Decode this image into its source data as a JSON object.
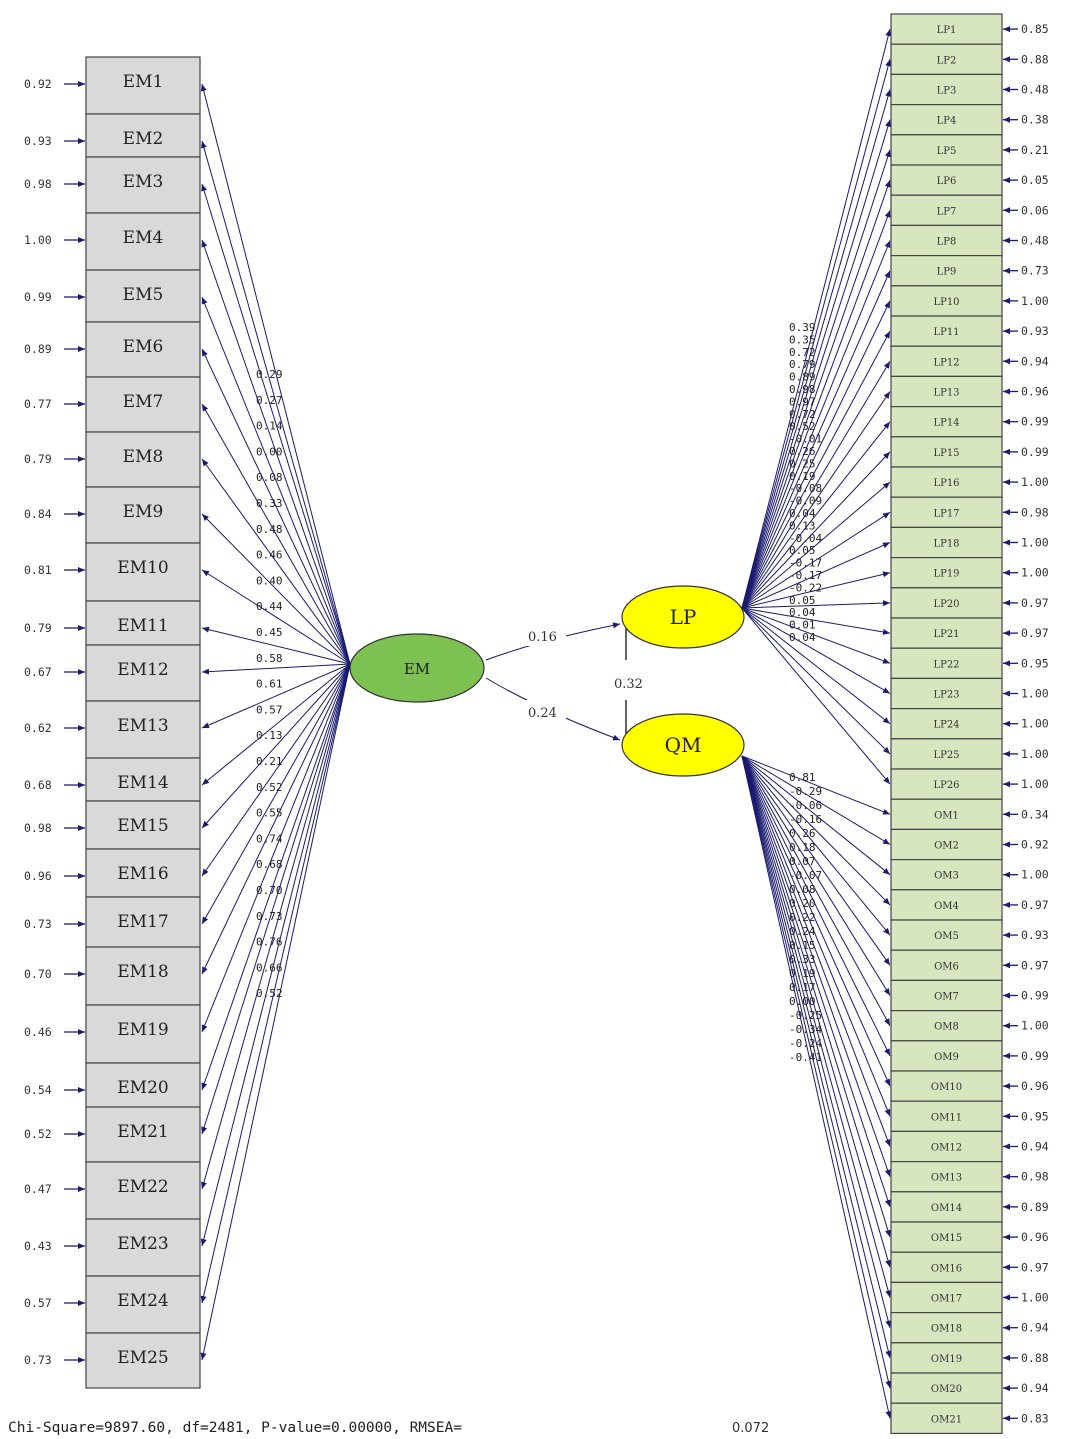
{
  "em_indicators": [
    {
      "name": "EM1",
      "error": "0.92",
      "loading": "0.29"
    },
    {
      "name": "EM2",
      "error": "0.93",
      "loading": "0.27"
    },
    {
      "name": "EM3",
      "error": "0.98",
      "loading": "0.14"
    },
    {
      "name": "EM4",
      "error": "1.00",
      "loading": "0.00"
    },
    {
      "name": "EM5",
      "error": "0.99",
      "loading": "0.08"
    },
    {
      "name": "EM6",
      "error": "0.89",
      "loading": "0.33"
    },
    {
      "name": "EM7",
      "error": "0.77",
      "loading": "0.48"
    },
    {
      "name": "EM8",
      "error": "0.79",
      "loading": "0.46"
    },
    {
      "name": "EM9",
      "error": "0.84",
      "loading": "0.40"
    },
    {
      "name": "EM10",
      "error": "0.81",
      "loading": "0.44"
    },
    {
      "name": "EM11",
      "error": "0.79",
      "loading": "0.45"
    },
    {
      "name": "EM12",
      "error": "0.67",
      "loading": "0.58"
    },
    {
      "name": "EM13",
      "error": "0.62",
      "loading": "0.61"
    },
    {
      "name": "EM14",
      "error": "0.68",
      "loading": "0.57"
    },
    {
      "name": "EM15",
      "error": "0.98",
      "loading": "0.13"
    },
    {
      "name": "EM16",
      "error": "0.96",
      "loading": "0.21"
    },
    {
      "name": "EM17",
      "error": "0.73",
      "loading": "0.52"
    },
    {
      "name": "EM18",
      "error": "0.70",
      "loading": "0.55"
    },
    {
      "name": "EM19",
      "error": "0.46",
      "loading": "0.74"
    },
    {
      "name": "EM20",
      "error": "0.54",
      "loading": "0.68"
    },
    {
      "name": "EM21",
      "error": "0.52",
      "loading": "0.70"
    },
    {
      "name": "EM22",
      "error": "0.47",
      "loading": "0.73"
    },
    {
      "name": "EM23",
      "error": "0.43",
      "loading": "0.76"
    },
    {
      "name": "EM24",
      "error": "0.57",
      "loading": "0.66"
    },
    {
      "name": "EM25",
      "error": "0.73",
      "loading": "0.52"
    }
  ],
  "lp_indicators": [
    {
      "name": "LP1",
      "error": "0.85",
      "loading": "0.39"
    },
    {
      "name": "LP2",
      "error": "0.88",
      "loading": "0.35"
    },
    {
      "name": "LP3",
      "error": "0.48",
      "loading": "0.72"
    },
    {
      "name": "LP4",
      "error": "0.38",
      "loading": "0.79"
    },
    {
      "name": "LP5",
      "error": "0.21",
      "loading": "0.89"
    },
    {
      "name": "LP6",
      "error": "0.05",
      "loading": "0.98"
    },
    {
      "name": "LP7",
      "error": "0.06",
      "loading": "0.97"
    },
    {
      "name": "LP8",
      "error": "0.48",
      "loading": "0.72"
    },
    {
      "name": "LP9",
      "error": "0.73",
      "loading": "0.52"
    },
    {
      "name": "LP10",
      "error": "1.00",
      "loading": "-0.01"
    },
    {
      "name": "LP11",
      "error": "0.93",
      "loading": "0.26"
    },
    {
      "name": "LP12",
      "error": "0.94",
      "loading": "0.25"
    },
    {
      "name": "LP13",
      "error": "0.96",
      "loading": "0.19"
    },
    {
      "name": "LP14",
      "error": "0.99",
      "loading": "-0.08"
    },
    {
      "name": "LP15",
      "error": "0.99",
      "loading": "-0.09"
    },
    {
      "name": "LP16",
      "error": "1.00",
      "loading": "0.04"
    },
    {
      "name": "LP17",
      "error": "0.98",
      "loading": "0.13"
    },
    {
      "name": "LP18",
      "error": "1.00",
      "loading": "-0.04"
    },
    {
      "name": "LP19",
      "error": "1.00",
      "loading": "0.05"
    },
    {
      "name": "LP20",
      "error": "0.97",
      "loading": "-0.17"
    },
    {
      "name": "LP21",
      "error": "0.97",
      "loading": "-0.17"
    },
    {
      "name": "LP22",
      "error": "0.95",
      "loading": "-0.22"
    },
    {
      "name": "LP23",
      "error": "1.00",
      "loading": "0.05"
    },
    {
      "name": "LP24",
      "error": "1.00",
      "loading": "0.04"
    },
    {
      "name": "LP25",
      "error": "1.00",
      "loading": "0.01"
    },
    {
      "name": "LP26",
      "error": "1.00",
      "loading": "0.04"
    }
  ],
  "qm_indicators": [
    {
      "name": "OM1",
      "error": "0.34",
      "loading": "0.81"
    },
    {
      "name": "OM2",
      "error": "0.92",
      "loading": "-0.29"
    },
    {
      "name": "OM3",
      "error": "1.00",
      "loading": "-0.06"
    },
    {
      "name": "OM4",
      "error": "0.97",
      "loading": "-0.16"
    },
    {
      "name": "OM5",
      "error": "0.93",
      "loading": "0.26"
    },
    {
      "name": "OM6",
      "error": "0.97",
      "loading": "0.18"
    },
    {
      "name": "OM7",
      "error": "0.99",
      "loading": "0.07"
    },
    {
      "name": "OM8",
      "error": "1.00",
      "loading": "-0.07"
    },
    {
      "name": "OM9",
      "error": "0.99",
      "loading": "0.08"
    },
    {
      "name": "OM10",
      "error": "0.96",
      "loading": "0.20"
    },
    {
      "name": "OM11",
      "error": "0.95",
      "loading": "0.22"
    },
    {
      "name": "OM12",
      "error": "0.94",
      "loading": "0.24"
    },
    {
      "name": "OM13",
      "error": "0.98",
      "loading": "0.15"
    },
    {
      "name": "OM14",
      "error": "0.89",
      "loading": "0.33"
    },
    {
      "name": "OM15",
      "error": "0.96",
      "loading": "0.19"
    },
    {
      "name": "OM16",
      "error": "0.97",
      "loading": "0.17"
    },
    {
      "name": "OM17",
      "error": "1.00",
      "loading": "0.00"
    },
    {
      "name": "OM18",
      "error": "0.94",
      "loading": "-0.25"
    },
    {
      "name": "OM19",
      "error": "0.88",
      "loading": "-0.34"
    },
    {
      "name": "OM20",
      "error": "0.94",
      "loading": "-0.24"
    },
    {
      "name": "OM21",
      "error": "0.83",
      "loading": "-0.41"
    }
  ],
  "latent": {
    "em": "EM",
    "lp": "LP",
    "qm": "QM",
    "colors": {
      "em": "#7cc151",
      "lp": "#ffff00",
      "qm": "#ffff00"
    }
  },
  "structural": {
    "em_lp": "0.16",
    "em_qm": "0.24",
    "lp_qm": "0.32"
  },
  "fit": {
    "text": "Chi-Square=9897.60, df=2481, P-value=0.00000, RMSEA=",
    "rmsea": "0.072"
  }
}
